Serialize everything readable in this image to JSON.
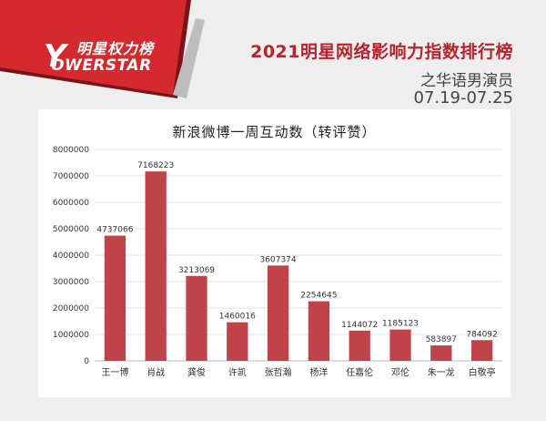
{
  "header": {
    "brand_cn": "明星权力榜",
    "brand_en": "OWERSTAR",
    "brand_y": "Y",
    "title": "2021明星网络影响力指数排行榜",
    "subtitle": "之华语男演员",
    "date_range": "07.19-07.25"
  },
  "colors": {
    "accent": "#b8232d",
    "bar": "#c0434a",
    "banner": "#d42a2f"
  },
  "chart_data": {
    "type": "bar",
    "title": "新浪微博一周互动数（转评赞）",
    "xlabel": "",
    "ylabel": "",
    "categories": [
      "王一博",
      "肖战",
      "龚俊",
      "许凯",
      "张哲瀚",
      "杨洋",
      "任嘉伦",
      "邓伦",
      "朱一龙",
      "白敬亭"
    ],
    "values": [
      4737066,
      7168223,
      3213069,
      1460016,
      3607374,
      2254645,
      1144072,
      1185123,
      583897,
      784092
    ],
    "ylim": [
      0,
      8000000
    ],
    "yticks": [
      0,
      1000000,
      2000000,
      3000000,
      4000000,
      5000000,
      6000000,
      7000000,
      8000000
    ],
    "grid": true,
    "legend": "none"
  }
}
